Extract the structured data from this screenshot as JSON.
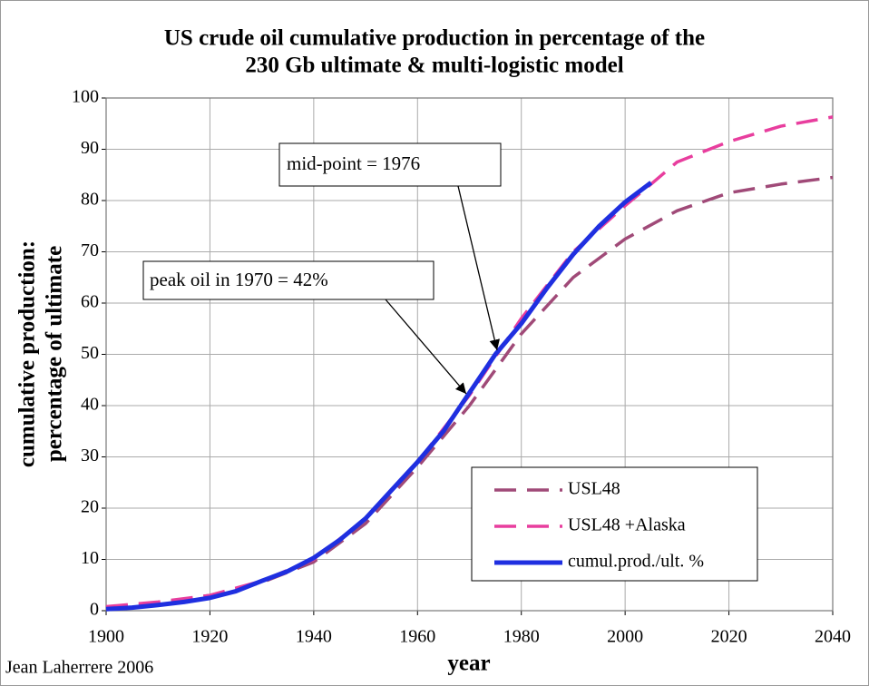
{
  "chart_data": {
    "type": "line",
    "title": [
      "US crude oil cumulative production in percentage of the",
      "230 Gb ultimate & multi-logistic model"
    ],
    "y_label": [
      "cumulative production:",
      "percentage of ultimate"
    ],
    "x_label": "year",
    "credit": "Jean Laherrere 2006",
    "annotations": [
      "mid-point = 1976",
      "peak oil in 1970 = 42%"
    ],
    "xlim": [
      1900,
      2040
    ],
    "xticks": [
      1900,
      1920,
      1940,
      1960,
      1980,
      2000,
      2020,
      2040
    ],
    "ylim": [
      0,
      100
    ],
    "yticks": [
      0,
      10,
      20,
      30,
      40,
      50,
      60,
      70,
      80,
      90,
      100
    ],
    "grid": true,
    "legend": "lower-right",
    "series": [
      {
        "name": "USL48",
        "color": "#a04a78",
        "style": "dashed",
        "x": [
          1900,
          1910,
          1920,
          1930,
          1940,
          1950,
          1960,
          1970,
          1975,
          1980,
          1990,
          2000,
          2010,
          2020,
          2030,
          2040
        ],
        "values": [
          0.7,
          1.5,
          3,
          5.5,
          9.5,
          17,
          28,
          40,
          47,
          54,
          65,
          72.5,
          78,
          81.5,
          83.2,
          84.5
        ]
      },
      {
        "name": "USL48 +Alaska",
        "color": "#e83e9e",
        "style": "dashed",
        "x": [
          1900,
          1910,
          1920,
          1930,
          1940,
          1950,
          1960,
          1970,
          1980,
          1990,
          2000,
          2005,
          2010,
          2020,
          2030,
          2040
        ],
        "values": [
          0.8,
          1.7,
          3,
          5.8,
          10,
          18,
          29,
          42,
          57,
          70,
          79,
          83.2,
          87.5,
          91.5,
          94.5,
          96.3
        ]
      },
      {
        "name": "cumul.prod./ult. %",
        "color": "#1f2fe0",
        "style": "solid",
        "x": [
          1900,
          1905,
          1910,
          1915,
          1920,
          1925,
          1930,
          1935,
          1940,
          1945,
          1950,
          1955,
          1960,
          1965,
          1970,
          1975,
          1980,
          1985,
          1990,
          1995,
          2000,
          2005
        ],
        "values": [
          0.3,
          0.6,
          1.1,
          1.7,
          2.5,
          3.8,
          5.8,
          7.7,
          10.3,
          13.8,
          18,
          23.5,
          29,
          35,
          42.5,
          50,
          56,
          63,
          69.5,
          75,
          79.7,
          83.5
        ]
      }
    ]
  }
}
